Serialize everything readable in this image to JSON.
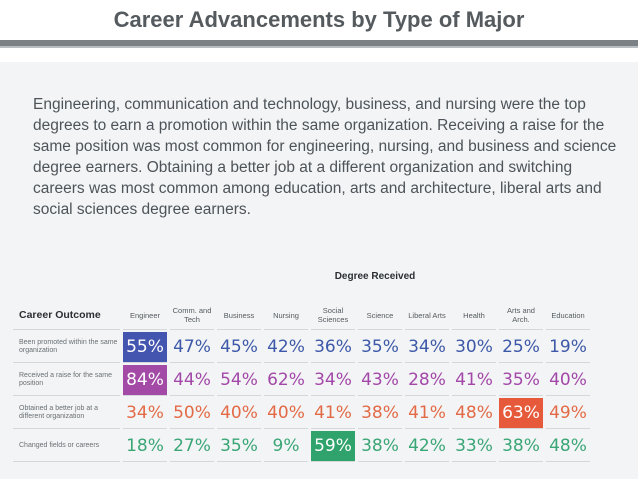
{
  "title": "Career Advancements by Type of Major",
  "description": "Engineering, communication and technology, business, and nursing were the top degrees to earn a promotion within the same organization. Receiving a raise for the same position was most common for engineering, nursing, and business and science degree earners. Obtaining a better job at a different organization and switching careers was most common among education, arts and architecture, liberal arts and social sciences degree earners.",
  "table": {
    "degree_header": "Degree Received",
    "outcome_header": "Career Outcome",
    "degrees": [
      "Engineer",
      "Comm. and Tech",
      "Business",
      "Nursing",
      "Social Sciences",
      "Science",
      "Liberal Arts",
      "Health",
      "Arts and Arch.",
      "Education"
    ],
    "rows": [
      {
        "label": "Been promoted within the same organization",
        "color": "#3d58a8",
        "values": [
          "55%",
          "47%",
          "45%",
          "42%",
          "36%",
          "35%",
          "34%",
          "30%",
          "25%",
          "19%"
        ],
        "highlight": 0,
        "highlight_bg": "#4455b0"
      },
      {
        "label": "Received a raise for the same position",
        "color": "#a347a8",
        "values": [
          "84%",
          "44%",
          "54%",
          "62%",
          "34%",
          "43%",
          "28%",
          "41%",
          "35%",
          "40%"
        ],
        "highlight": 0,
        "highlight_bg": "#a24aa6"
      },
      {
        "label": "Obtained a better job at a different organization",
        "color": "#e36a46",
        "values": [
          "34%",
          "50%",
          "40%",
          "40%",
          "41%",
          "38%",
          "41%",
          "48%",
          "63%",
          "49%"
        ],
        "highlight": 8,
        "highlight_bg": "#e65a3b"
      },
      {
        "label": "Changed fields or careers",
        "color": "#3aa676",
        "values": [
          "18%",
          "27%",
          "35%",
          "9%",
          "59%",
          "38%",
          "42%",
          "33%",
          "38%",
          "48%"
        ],
        "highlight": 4,
        "highlight_bg": "#2fa36b"
      }
    ]
  }
}
